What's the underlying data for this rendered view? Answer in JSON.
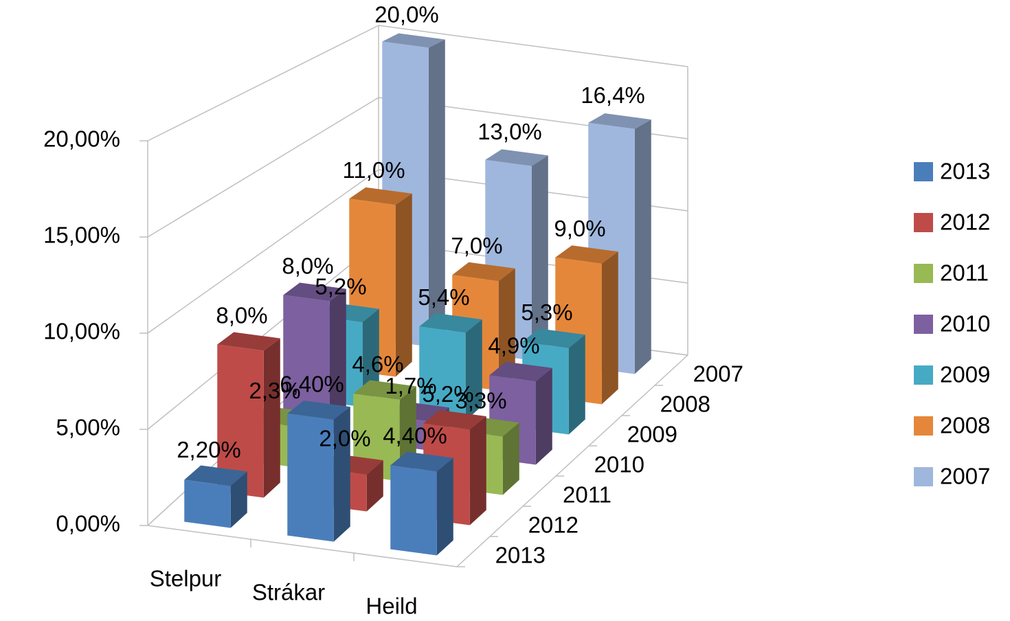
{
  "chart_data": {
    "type": "bar3d",
    "categories": [
      "Stelpur",
      "Strákar",
      "Heild"
    ],
    "series": [
      {
        "name": "2013",
        "color": "#4a7ebb",
        "values": [
          2.2,
          6.4,
          4.4
        ],
        "value_labels": [
          "2,20%",
          "6,40%",
          "4,40%"
        ]
      },
      {
        "name": "2012",
        "color": "#be4b48",
        "values": [
          8.0,
          2.0,
          5.2
        ],
        "value_labels": [
          "8,0%",
          "2,0%",
          "5,2%"
        ]
      },
      {
        "name": "2011",
        "color": "#98b954",
        "values": [
          2.3,
          4.6,
          3.3
        ],
        "value_labels": [
          "2,3%",
          "4,6%",
          "3,3%"
        ]
      },
      {
        "name": "2010",
        "color": "#7d60a0",
        "values": [
          8.0,
          1.7,
          4.9
        ],
        "value_labels": [
          "8,0%",
          "1,7%",
          "4,9%"
        ]
      },
      {
        "name": "2009",
        "color": "#46aac5",
        "values": [
          5.2,
          5.4,
          5.3
        ],
        "value_labels": [
          "5,2%",
          "5,4%",
          "5,3%"
        ]
      },
      {
        "name": "2008",
        "color": "#e5873a",
        "values": [
          11.0,
          7.0,
          9.0
        ],
        "value_labels": [
          "11,0%",
          "7,0%",
          "9,0%"
        ]
      },
      {
        "name": "2007",
        "color": "#9fb7dd",
        "values": [
          20.0,
          13.0,
          16.4
        ],
        "value_labels": [
          "20,0%",
          "13,0%",
          "16,4%"
        ]
      }
    ],
    "ylim": [
      0,
      20
    ],
    "yticks": [
      {
        "value": 0,
        "label": "0,00%"
      },
      {
        "value": 5,
        "label": "5,00%"
      },
      {
        "value": 10,
        "label": "10,00%"
      },
      {
        "value": 15,
        "label": "15,00%"
      },
      {
        "value": 20,
        "label": "20,00%"
      }
    ],
    "grid": true,
    "legend": "right"
  }
}
